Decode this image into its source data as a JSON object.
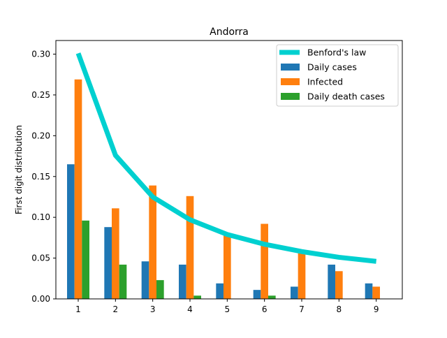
{
  "chart_data": {
    "type": "bar",
    "title": "Andorra",
    "xlabel": "",
    "ylabel": "First digit distribution",
    "categories": [
      "1",
      "2",
      "3",
      "4",
      "5",
      "6",
      "7",
      "8",
      "9"
    ],
    "x": [
      1,
      2,
      3,
      4,
      5,
      6,
      7,
      8,
      9
    ],
    "ylim": [
      0,
      0.3
    ],
    "xlim": [
      0.4,
      9.7
    ],
    "yticks": [
      0.0,
      0.05,
      0.1,
      0.15,
      0.2,
      0.25,
      0.3
    ],
    "ytick_labels": [
      "0.00",
      "0.05",
      "0.10",
      "0.15",
      "0.20",
      "0.25",
      "0.30"
    ],
    "grid": false,
    "legend_position": "top-right",
    "series": [
      {
        "name": "Benford's law",
        "kind": "line",
        "color": "#00d0d0",
        "values": [
          0.301,
          0.176,
          0.125,
          0.097,
          0.079,
          0.067,
          0.058,
          0.051,
          0.046
        ]
      },
      {
        "name": "Daily cases",
        "kind": "bar",
        "color": "#1f77b4",
        "values": [
          0.165,
          0.088,
          0.046,
          0.042,
          0.019,
          0.011,
          0.015,
          0.042,
          0.019
        ]
      },
      {
        "name": "Infected",
        "kind": "bar",
        "color": "#ff7f0e",
        "values": [
          0.269,
          0.111,
          0.139,
          0.126,
          0.078,
          0.092,
          0.058,
          0.034,
          0.015
        ]
      },
      {
        "name": "Daily death cases",
        "kind": "bar",
        "color": "#2ca02c",
        "values": [
          0.096,
          0.042,
          0.023,
          0.004,
          0.0,
          0.004,
          0.0,
          0.0,
          0.0
        ]
      }
    ]
  }
}
